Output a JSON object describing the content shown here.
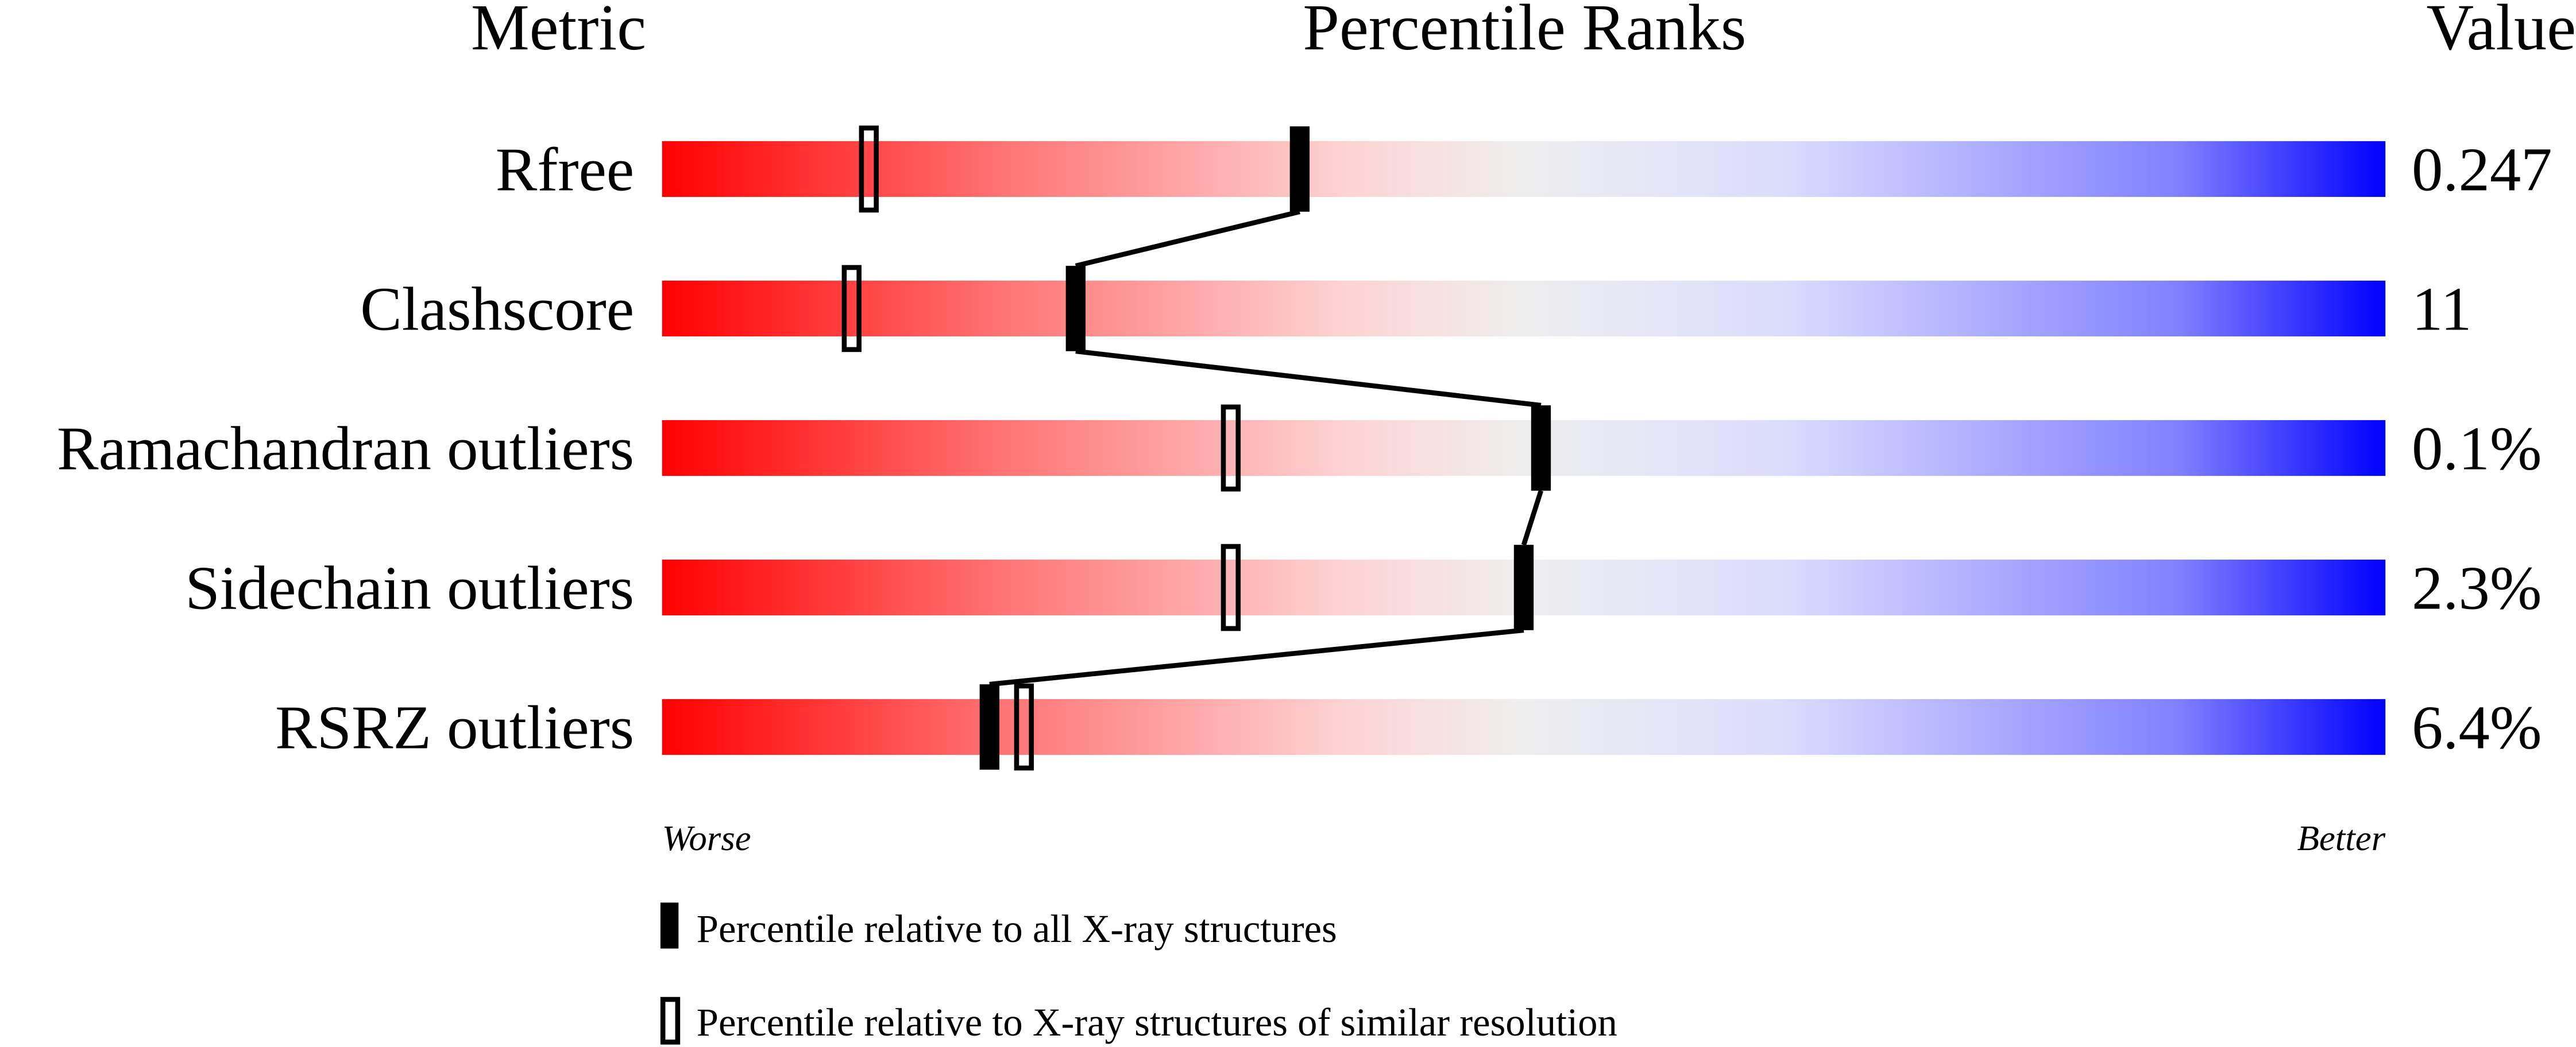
{
  "chart_data": {
    "type": "bar",
    "headers": {
      "metric": "Metric",
      "ranks": "Percentile Ranks",
      "value": "Value"
    },
    "xlim": [
      0,
      100
    ],
    "metrics": [
      {
        "name": "Rfree",
        "value": "0.247",
        "percentile_all": 37,
        "percentile_similar": 12
      },
      {
        "name": "Clashscore",
        "value": "11",
        "percentile_all": 24,
        "percentile_similar": 11
      },
      {
        "name": "Ramachandran outliers",
        "value": "0.1%",
        "percentile_all": 51,
        "percentile_similar": 33
      },
      {
        "name": "Sidechain outliers",
        "value": "2.3%",
        "percentile_all": 50,
        "percentile_similar": 33
      },
      {
        "name": "RSRZ outliers",
        "value": "6.4%",
        "percentile_all": 19,
        "percentile_similar": 21
      }
    ],
    "axis_labels": {
      "left": "Worse",
      "right": "Better"
    },
    "legend": {
      "all": "Percentile relative to all X-ray structures",
      "similar": "Percentile relative to X-ray structures of similar resolution"
    },
    "gradient_colors": [
      "#ff0000",
      "#ff7575",
      "#fdd4d4",
      "#eeeeee",
      "#dcdcfd",
      "#8080ff",
      "#0000ff"
    ]
  }
}
